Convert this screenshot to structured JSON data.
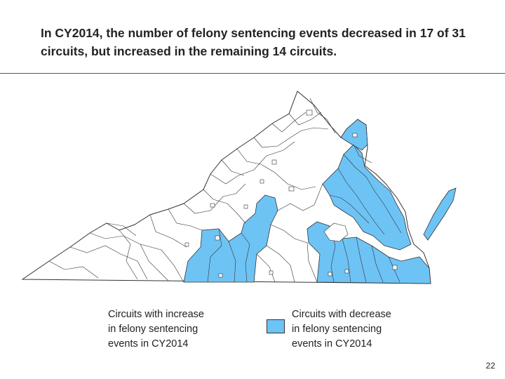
{
  "title": "In CY2014, the number of felony sentencing events decreased in 17 of 31 circuits, but increased in the remaining 14 circuits.",
  "legend": {
    "increase": {
      "lines": [
        "Circuits with increase",
        "in felony sentencing",
        "events in CY2014"
      ],
      "color": "#ffffff"
    },
    "decrease": {
      "lines": [
        "Circuits with decrease",
        "in felony sentencing",
        "events in CY2014"
      ],
      "color": "#6ec3f5"
    }
  },
  "colors": {
    "increase_fill": "#ffffff",
    "decrease_fill": "#6ec3f5",
    "boundary": "#333333"
  },
  "page_number": "22"
}
